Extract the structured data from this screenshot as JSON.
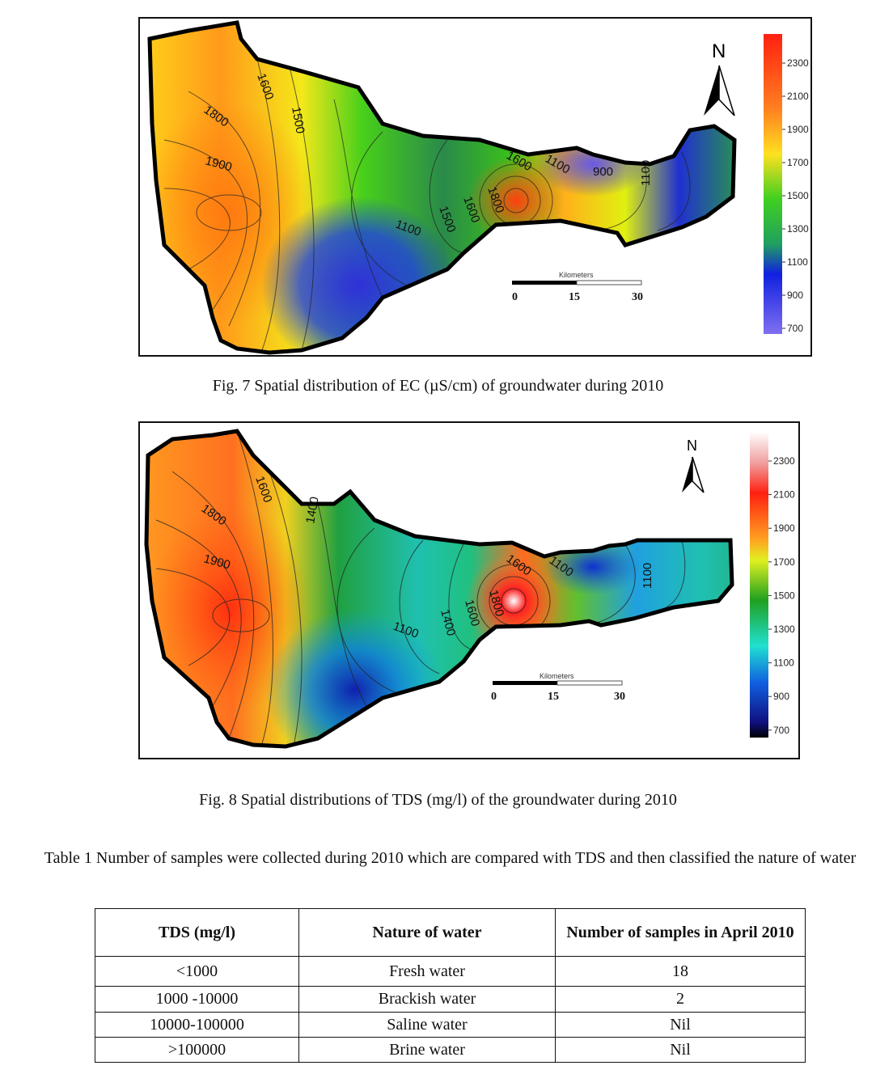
{
  "figures": [
    {
      "caption": "Fig. 7 Spatial distribution of EC (µS/cm) of groundwater during 2010",
      "north_label": "N",
      "colorbar_ticks": [
        "2300",
        "2100",
        "1900",
        "1700",
        "1500",
        "1300",
        "1100",
        "900",
        "700"
      ],
      "contour_labels": [
        "1600",
        "1500",
        "1800",
        "1900",
        "1100",
        "1800",
        "1600",
        "1500",
        "1600",
        "1100",
        "900",
        "1100"
      ],
      "scale": {
        "title": "Kilometers",
        "ticks": [
          "0",
          "15",
          "30"
        ]
      }
    },
    {
      "caption": "Fig. 8 Spatial distributions of TDS (mg/l) of the groundwater during 2010",
      "north_label": "N",
      "colorbar_ticks": [
        "2300",
        "2100",
        "1900",
        "1700",
        "1500",
        "1300",
        "1100",
        "900",
        "700"
      ],
      "contour_labels": [
        "1600",
        "1400",
        "1800",
        "1900",
        "1100",
        "1800",
        "1600",
        "1400",
        "1600",
        "1100",
        "1100"
      ],
      "scale": {
        "title": "Kilometers",
        "ticks": [
          "0",
          "15",
          "30"
        ]
      }
    }
  ],
  "table": {
    "caption": "Table 1 Number of samples were collected during 2010 which are compared with TDS and then classified the nature of water",
    "headers": [
      "TDS (mg/l)",
      "Nature of water",
      "Number of samples in April 2010"
    ],
    "rows": [
      [
        "<1000",
        "Fresh water",
        "18"
      ],
      [
        "1000 -10000",
        "Brackish water",
        "2"
      ],
      [
        "10000-100000",
        "Saline water",
        "Nil"
      ],
      [
        ">100000",
        "Brine water",
        "Nil"
      ]
    ]
  }
}
